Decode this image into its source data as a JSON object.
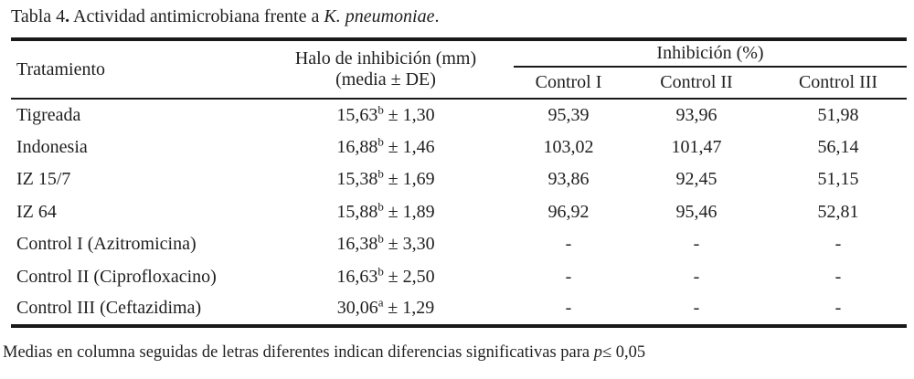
{
  "title": {
    "prefix": "Tabla 4",
    "dot": ".",
    "body": " Actividad antimicrobiana frente a ",
    "species": "K. pneumoniae",
    "suffix": "."
  },
  "table": {
    "header": {
      "tratamiento": "Tratamiento",
      "halo_line1": "Halo de inhibición (mm)",
      "halo_line2": "(media ± DE)",
      "inhibicion_group": "Inhibición (%)",
      "control1": "Control I",
      "control2": "Control II",
      "control3": "Control III"
    },
    "rows": [
      {
        "tratamiento": "Tigreada",
        "halo_mean": "15,63",
        "halo_sup": "b",
        "halo_sd": "± 1,30",
        "c1": "95,39",
        "c2": "93,96",
        "c3": "51,98"
      },
      {
        "tratamiento": "Indonesia",
        "halo_mean": "16,88",
        "halo_sup": "b",
        "halo_sd": "± 1,46",
        "c1": "103,02",
        "c2": "101,47",
        "c3": "56,14"
      },
      {
        "tratamiento": "IZ 15/7",
        "halo_mean": "15,38",
        "halo_sup": "b",
        "halo_sd": "± 1,69",
        "c1": "93,86",
        "c2": "92,45",
        "c3": "51,15"
      },
      {
        "tratamiento": "IZ 64",
        "halo_mean": "15,88",
        "halo_sup": "b",
        "halo_sd": "± 1,89",
        "c1": "96,92",
        "c2": "95,46",
        "c3": "52,81"
      },
      {
        "tratamiento": "Control I (Azitromicina)",
        "halo_mean": "16,38",
        "halo_sup": "b",
        "halo_sd": "± 3,30",
        "c1": "-",
        "c2": "-",
        "c3": "-"
      },
      {
        "tratamiento": "Control II (Ciprofloxacino)",
        "halo_mean": "16,63",
        "halo_sup": "b",
        "halo_sd": "± 2,50",
        "c1": "-",
        "c2": "-",
        "c3": "-"
      },
      {
        "tratamiento": "Control III (Ceftazidima)",
        "halo_mean": "30,06",
        "halo_sup": "a",
        "halo_sd": "± 1,29",
        "c1": "-",
        "c2": "-",
        "c3": "-"
      }
    ]
  },
  "footnote": {
    "prefix": "Medias en columna seguidas de letras diferentes indican diferencias significativas para ",
    "p": "p",
    "suffix": "≤ 0,05"
  },
  "colors": {
    "text": "#1f1f1f",
    "rule": "#191919",
    "background": "#ffffff"
  }
}
